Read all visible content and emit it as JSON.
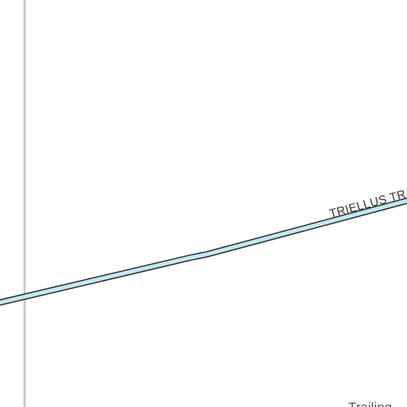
{
  "map": {
    "colors": {
      "background": "#ffffff",
      "gridline": "#c8c8c8",
      "road_fill": "#bfe9f7",
      "road_casing": "#2b2b2b",
      "label_text": "#333333"
    },
    "roads": [
      {
        "name": "TRIELLUS TR",
        "kind": "primary"
      }
    ],
    "labels": {
      "road_name": "TRIELLUS TR",
      "place_fragment": "Trailing"
    }
  }
}
